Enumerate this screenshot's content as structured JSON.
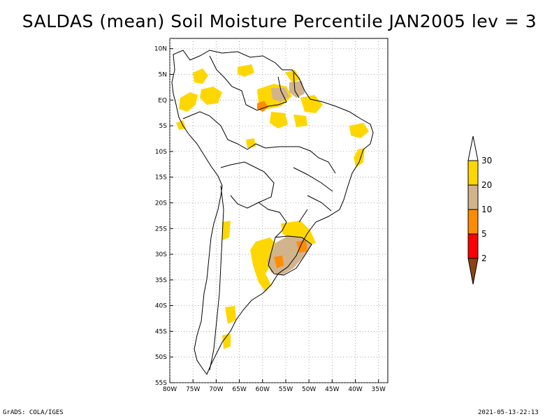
{
  "title": "SALDAS (mean) Soil Moisture Percentile JAN2005 lev = 3",
  "footer": {
    "left": "GrADS: COLA/IGES",
    "right": "2021-05-13-22:13"
  },
  "map": {
    "lon_range": [
      -80,
      -33
    ],
    "lat_range": [
      -55,
      12
    ],
    "lat_ticks": [
      "10N",
      "5N",
      "EQ",
      "5S",
      "10S",
      "15S",
      "20S",
      "25S",
      "30S",
      "35S",
      "40S",
      "45S",
      "50S",
      "55S"
    ],
    "lat_tick_values": [
      10,
      5,
      0,
      -5,
      -10,
      -15,
      -20,
      -25,
      -30,
      -35,
      -40,
      -45,
      -50,
      -55
    ],
    "lon_ticks": [
      "80W",
      "75W",
      "70W",
      "65W",
      "60W",
      "55W",
      "50W",
      "45W",
      "40W",
      "35W"
    ],
    "lon_tick_values": [
      -80,
      -75,
      -70,
      -65,
      -60,
      -55,
      -50,
      -45,
      -40,
      -35
    ]
  },
  "legend": {
    "labels": [
      "2",
      "5",
      "10",
      "20",
      "30"
    ],
    "colors": {
      "below_2": "#8b4513",
      "2_5": "#ff0000",
      "5_10": "#ff8c00",
      "10_20": "#d2b48c",
      "20_30": "#ffd700",
      "above_30": "#ffffff"
    }
  }
}
